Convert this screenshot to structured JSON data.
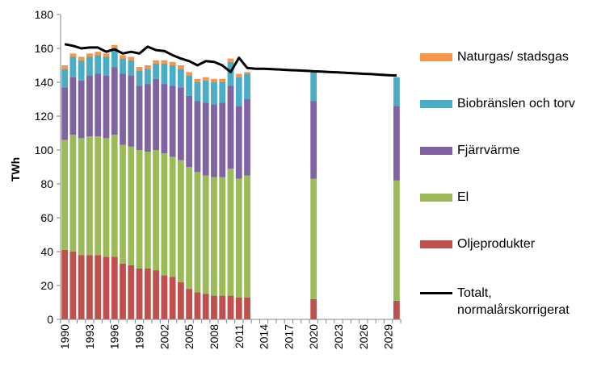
{
  "chart_data": {
    "type": "bar",
    "ylabel": "TWh",
    "ylim": [
      0,
      180
    ],
    "yticks": [
      0,
      20,
      40,
      60,
      80,
      100,
      120,
      140,
      160,
      180
    ],
    "xticks": [
      "1990",
      "1993",
      "1996",
      "1999",
      "2002",
      "2005",
      "2008",
      "2011",
      "2014",
      "2017",
      "2020",
      "2023",
      "2026",
      "2029"
    ],
    "years": [
      1990,
      1991,
      1992,
      1993,
      1994,
      1995,
      1996,
      1997,
      1998,
      1999,
      2000,
      2001,
      2002,
      2003,
      2004,
      2005,
      2006,
      2007,
      2008,
      2009,
      2010,
      2011,
      2012,
      2013,
      2014,
      2015,
      2016,
      2017,
      2018,
      2019,
      2020,
      2021,
      2022,
      2023,
      2024,
      2025,
      2026,
      2027,
      2028,
      2029,
      2030
    ],
    "bar_years": [
      1990,
      1991,
      1992,
      1993,
      1994,
      1995,
      1996,
      1997,
      1998,
      1999,
      2000,
      2001,
      2002,
      2003,
      2004,
      2005,
      2006,
      2007,
      2008,
      2009,
      2010,
      2011,
      2012,
      2020,
      2030
    ],
    "series": [
      {
        "name": "Oljeprodukter",
        "color": "#c0504d",
        "values": [
          41,
          40,
          38,
          38,
          38,
          37,
          37,
          33,
          32,
          30,
          30,
          29,
          26,
          25,
          22,
          18,
          16,
          15,
          14,
          14,
          14,
          13,
          13,
          12,
          11
        ]
      },
      {
        "name": "El",
        "color": "#9bbb59",
        "values": [
          65,
          69,
          69,
          70,
          70,
          70,
          72,
          70,
          70,
          70,
          69,
          71,
          72,
          71,
          72,
          72,
          71,
          70,
          70,
          70,
          75,
          70,
          72,
          71,
          71
        ]
      },
      {
        "name": "Fjärrvärme",
        "color": "#8064a2",
        "values": [
          31,
          34,
          34,
          36,
          37,
          37,
          40,
          42,
          42,
          38,
          40,
          42,
          41,
          42,
          43,
          42,
          42,
          43,
          43,
          44,
          49,
          43,
          45,
          46,
          44
        ]
      },
      {
        "name": "Biobränslen och torv",
        "color": "#4bacc6",
        "values": [
          11,
          12,
          12,
          11,
          11,
          11,
          11,
          9,
          9,
          9,
          9,
          9,
          12,
          12,
          11,
          12,
          11,
          13,
          13,
          12,
          14,
          17,
          15,
          17,
          17
        ]
      },
      {
        "name": "Naturgas/ stadsgas",
        "color": "#f79646",
        "values": [
          2,
          2,
          2,
          2,
          2,
          2,
          2,
          2,
          2,
          2,
          2,
          2,
          2,
          2,
          2,
          2,
          2,
          2,
          2,
          2,
          2,
          2,
          1,
          0,
          0
        ]
      }
    ],
    "total_line": {
      "name": "Totalt, normalårskorrigerat",
      "color": "#000000",
      "values": [
        162.5,
        161.5,
        160,
        160.5,
        160.5,
        158,
        159.5,
        157,
        158,
        157,
        161,
        159,
        158.5,
        156,
        154,
        152.5,
        150,
        152.5,
        152,
        150,
        146,
        154.5,
        148.5,
        148,
        148,
        147.7,
        147.5,
        147.2,
        147,
        146.8,
        146.5,
        146.3,
        146,
        145.8,
        145.5,
        145.3,
        145,
        144.8,
        144.5,
        144.2,
        144
      ]
    }
  }
}
